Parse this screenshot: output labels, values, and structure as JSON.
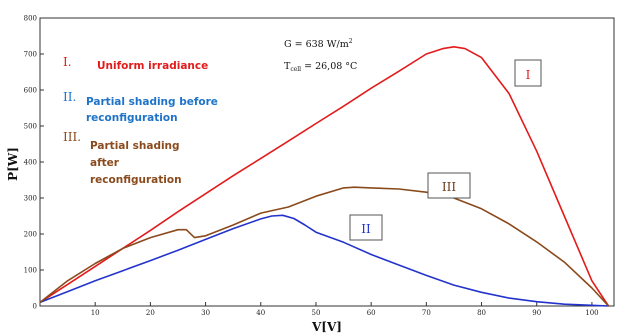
{
  "chart_data": {
    "type": "line",
    "xlabel": "V[V]",
    "ylabel": "P[W]",
    "xlim": [
      0,
      104
    ],
    "ylim": [
      0,
      800
    ],
    "x_ticks": [
      10,
      20,
      30,
      40,
      50,
      60,
      70,
      80,
      90,
      100
    ],
    "y_ticks": [
      0,
      100,
      200,
      300,
      400,
      500,
      600,
      700,
      800
    ],
    "annotation": {
      "irradiance": "G = 638  W/m",
      "irradiance_sup": "2",
      "temperature_main": "T",
      "temperature_sub": "cell",
      "temperature_value": " = 26,08 °C"
    },
    "legend": [
      {
        "numeral": "I.",
        "lines": [
          "Uniform irradiance"
        ],
        "color": "#e31b1b"
      },
      {
        "numeral": "II.",
        "lines": [
          "Partial shading before",
          "reconfiguration"
        ],
        "color": "#1e73c8"
      },
      {
        "numeral": "III.",
        "lines": [
          "Partial shading",
          "after",
          "reconfiguration"
        ],
        "color": "#8a4a1c"
      }
    ],
    "series": [
      {
        "label": "I",
        "color": "#e31b1b",
        "x": [
          0,
          5,
          10,
          15,
          20,
          25,
          30,
          35,
          40,
          45,
          50,
          55,
          60,
          65,
          70,
          73,
          75,
          77,
          80,
          85,
          90,
          95,
          100,
          103
        ],
        "y": [
          10,
          60,
          110,
          160,
          210,
          262,
          312,
          362,
          410,
          458,
          507,
          555,
          605,
          652,
          700,
          715,
          720,
          715,
          690,
          590,
          430,
          250,
          70,
          0
        ]
      },
      {
        "label": "II",
        "color": "#2433cc",
        "x": [
          0,
          5,
          10,
          15,
          20,
          25,
          30,
          35,
          40,
          42,
          44,
          46,
          48,
          50,
          55,
          60,
          65,
          70,
          75,
          80,
          85,
          90,
          95,
          100,
          103
        ],
        "y": [
          10,
          40,
          70,
          98,
          126,
          155,
          185,
          215,
          242,
          250,
          252,
          243,
          225,
          205,
          177,
          143,
          114,
          85,
          58,
          38,
          22,
          12,
          5,
          2,
          0
        ]
      },
      {
        "label": "III",
        "color": "#8a4a1c",
        "x": [
          0,
          5,
          10,
          15,
          20,
          25,
          26.5,
          28,
          30,
          35,
          40,
          45,
          50,
          55,
          57,
          60,
          65,
          70,
          75,
          80,
          85,
          90,
          95,
          100,
          103
        ],
        "y": [
          10,
          70,
          118,
          160,
          190,
          212,
          212,
          190,
          195,
          225,
          258,
          275,
          305,
          328,
          330,
          328,
          325,
          316,
          300,
          270,
          228,
          178,
          122,
          50,
          0
        ]
      }
    ]
  }
}
